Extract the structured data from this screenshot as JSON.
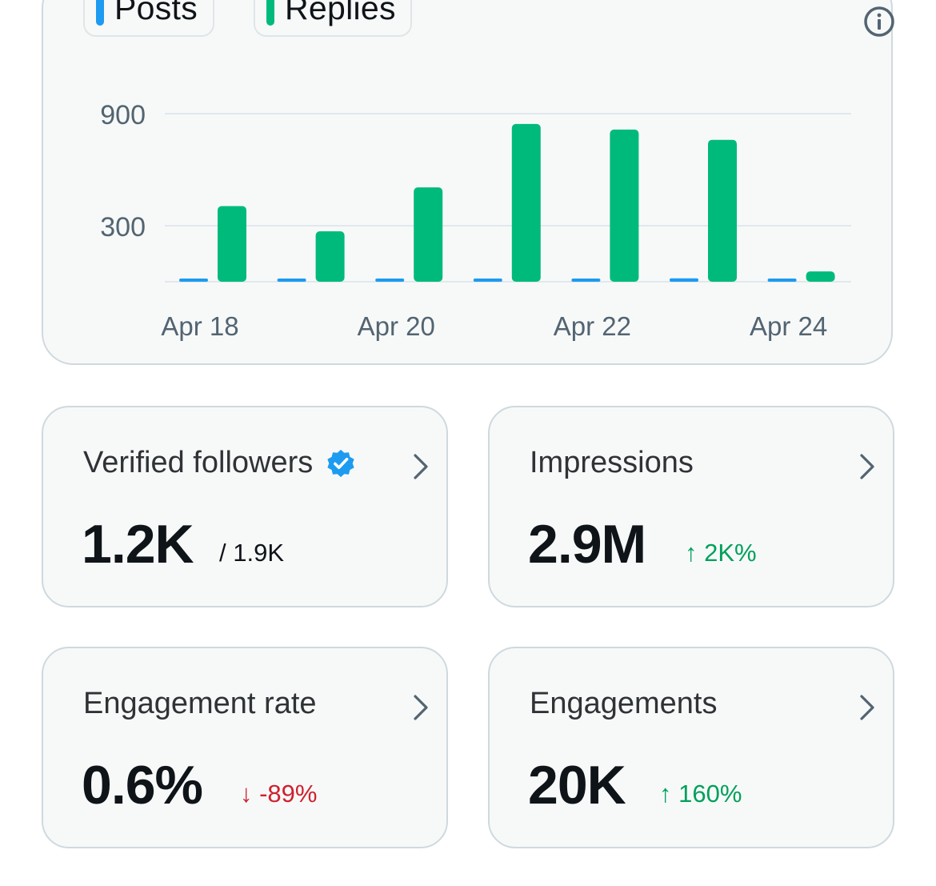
{
  "chart": {
    "legend": [
      {
        "label": "Posts",
        "color": "#1d9bf0"
      },
      {
        "label": "Replies",
        "color": "#00ba7c"
      }
    ],
    "info_icon": "info-circle-icon"
  },
  "chart_data": {
    "type": "bar",
    "categories": [
      "Apr 18",
      "Apr 19",
      "Apr 20",
      "Apr 21",
      "Apr 22",
      "Apr 23",
      "Apr 24"
    ],
    "x_tick_labels": [
      "Apr 18",
      "Apr 20",
      "Apr 22",
      "Apr 24"
    ],
    "series": [
      {
        "name": "Posts",
        "color": "#1d9bf0",
        "values": [
          12,
          4,
          12,
          8,
          12,
          14,
          1
        ]
      },
      {
        "name": "Replies",
        "color": "#00ba7c",
        "values": [
          405,
          270,
          505,
          845,
          815,
          760,
          55
        ]
      }
    ],
    "y_ticks": [
      300,
      900
    ],
    "ylim": [
      0,
      1000
    ],
    "grid": true,
    "legend_position": "top-left"
  },
  "stats": [
    {
      "title": "Verified followers",
      "verified_icon": "verified-badge-icon",
      "value": "1.2K",
      "sub": "/ 1.9K",
      "sub_kind": "total"
    },
    {
      "title": "Impressions",
      "value": "2.9M",
      "sub": "↑ 2K%",
      "sub_kind": "up"
    },
    {
      "title": "Engagement rate",
      "value": "0.6%",
      "sub": "↓ -89%",
      "sub_kind": "down"
    },
    {
      "title": "Engagements",
      "value": "20K",
      "sub": "↑ 160%",
      "sub_kind": "up"
    }
  ]
}
